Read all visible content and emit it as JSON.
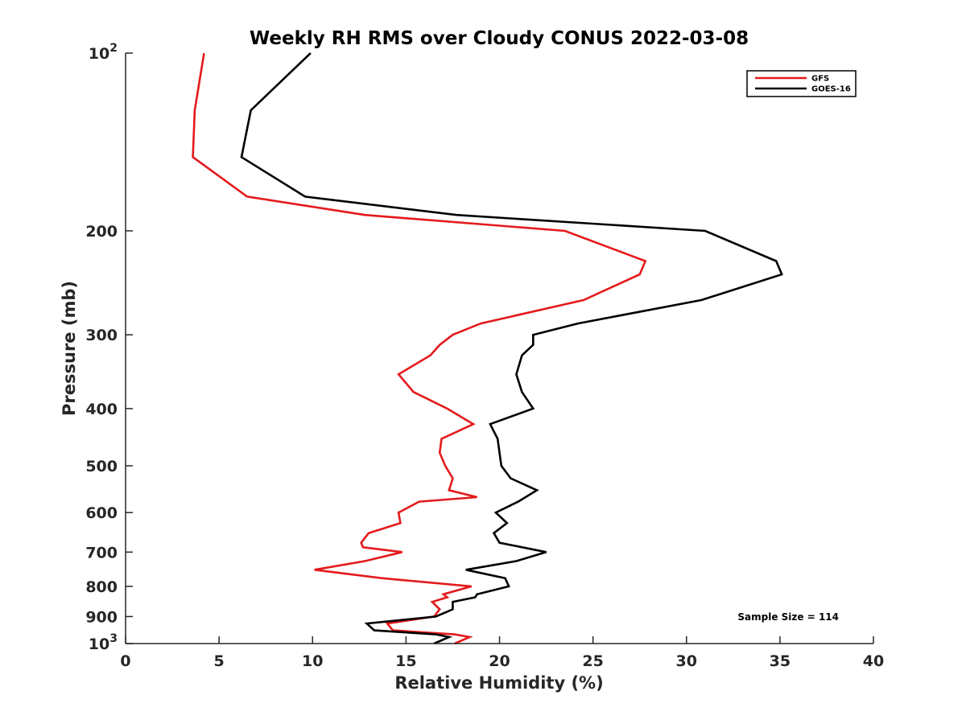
{
  "chart_data": {
    "type": "line",
    "title": "Weekly RH RMS over Cloudy CONUS 2022-03-08",
    "xlabel": "Relative Humidity (%)",
    "ylabel": "Pressure (mb)",
    "xlim": [
      0,
      40
    ],
    "ylim": [
      100,
      1000
    ],
    "y_scale": "log",
    "y_reversed": true,
    "grid": false,
    "legend_position": "top-right",
    "x_ticks": [
      {
        "value": 0,
        "label": "0"
      },
      {
        "value": 5,
        "label": "5"
      },
      {
        "value": 10,
        "label": "10"
      },
      {
        "value": 15,
        "label": "15"
      },
      {
        "value": 20,
        "label": "20"
      },
      {
        "value": 25,
        "label": "25"
      },
      {
        "value": 30,
        "label": "30"
      },
      {
        "value": 35,
        "label": "35"
      },
      {
        "value": 40,
        "label": "40"
      }
    ],
    "y_ticks": [
      {
        "value": 100,
        "label": "10",
        "sup": "2"
      },
      {
        "value": 200,
        "label": "200",
        "sup": ""
      },
      {
        "value": 300,
        "label": "300",
        "sup": ""
      },
      {
        "value": 400,
        "label": "400",
        "sup": ""
      },
      {
        "value": 500,
        "label": "500",
        "sup": ""
      },
      {
        "value": 600,
        "label": "600",
        "sup": ""
      },
      {
        "value": 700,
        "label": "700",
        "sup": ""
      },
      {
        "value": 800,
        "label": "800",
        "sup": ""
      },
      {
        "value": 900,
        "label": "900",
        "sup": ""
      },
      {
        "value": 1000,
        "label": "10",
        "sup": "3"
      }
    ],
    "series": [
      {
        "name": "GFS",
        "color": "#e41a1c",
        "points": [
          [
            4.2,
            100
          ],
          [
            3.7,
            125
          ],
          [
            3.6,
            150
          ],
          [
            6.5,
            175
          ],
          [
            12.8,
            188
          ],
          [
            23.5,
            200
          ],
          [
            27.8,
            225
          ],
          [
            27.5,
            237
          ],
          [
            24.5,
            262
          ],
          [
            19.0,
            287
          ],
          [
            17.5,
            300
          ],
          [
            16.8,
            312
          ],
          [
            16.3,
            325
          ],
          [
            14.6,
            350
          ],
          [
            15.4,
            375
          ],
          [
            17.2,
            400
          ],
          [
            18.6,
            425
          ],
          [
            16.9,
            450
          ],
          [
            16.8,
            475
          ],
          [
            17.1,
            500
          ],
          [
            17.5,
            525
          ],
          [
            17.3,
            550
          ],
          [
            18.8,
            565
          ],
          [
            15.7,
            575
          ],
          [
            14.6,
            600
          ],
          [
            14.7,
            625
          ],
          [
            13.0,
            650
          ],
          [
            12.6,
            675
          ],
          [
            12.7,
            687
          ],
          [
            14.8,
            700
          ],
          [
            12.8,
            725
          ],
          [
            10.1,
            750
          ],
          [
            13.7,
            775
          ],
          [
            18.5,
            800
          ],
          [
            17.0,
            825
          ],
          [
            17.2,
            835
          ],
          [
            16.4,
            850
          ],
          [
            16.8,
            875
          ],
          [
            16.5,
            900
          ],
          [
            14.0,
            925
          ],
          [
            14.3,
            950
          ],
          [
            17.6,
            965
          ],
          [
            18.4,
            975
          ],
          [
            17.6,
            1000
          ]
        ]
      },
      {
        "name": "GOES-16",
        "color": "#000000",
        "points": [
          [
            9.9,
            100
          ],
          [
            6.7,
            125
          ],
          [
            6.2,
            150
          ],
          [
            9.6,
            175
          ],
          [
            17.7,
            188
          ],
          [
            31.0,
            200
          ],
          [
            34.8,
            225
          ],
          [
            35.1,
            237
          ],
          [
            30.8,
            262
          ],
          [
            24.2,
            287
          ],
          [
            21.8,
            300
          ],
          [
            21.8,
            312
          ],
          [
            21.2,
            325
          ],
          [
            20.9,
            350
          ],
          [
            21.2,
            375
          ],
          [
            21.8,
            400
          ],
          [
            19.5,
            425
          ],
          [
            19.9,
            450
          ],
          [
            20.0,
            475
          ],
          [
            20.1,
            500
          ],
          [
            20.6,
            525
          ],
          [
            22.0,
            550
          ],
          [
            21.0,
            575
          ],
          [
            19.8,
            600
          ],
          [
            20.4,
            625
          ],
          [
            19.7,
            650
          ],
          [
            20.0,
            675
          ],
          [
            22.5,
            700
          ],
          [
            20.9,
            725
          ],
          [
            18.2,
            750
          ],
          [
            20.3,
            775
          ],
          [
            20.5,
            800
          ],
          [
            18.8,
            825
          ],
          [
            18.7,
            835
          ],
          [
            17.5,
            850
          ],
          [
            17.5,
            875
          ],
          [
            16.6,
            900
          ],
          [
            12.9,
            925
          ],
          [
            13.3,
            950
          ],
          [
            16.6,
            965
          ],
          [
            17.3,
            975
          ],
          [
            16.5,
            1000
          ]
        ]
      }
    ],
    "annotation": "Sample Size = 114"
  }
}
